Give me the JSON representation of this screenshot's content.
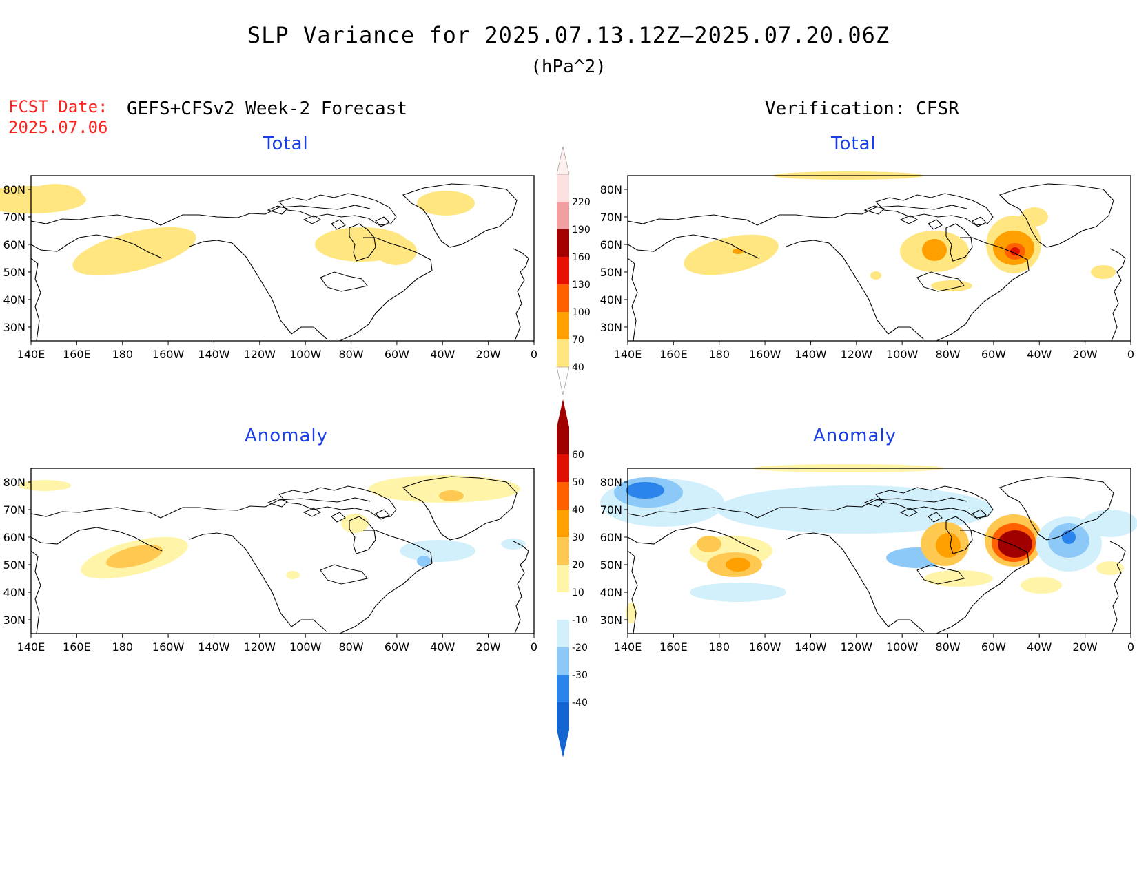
{
  "title": "SLP Variance for 2025.07.13.12Z—2025.07.20.06Z",
  "units": "(hPa^2)",
  "fcst_date_label": "FCST Date:",
  "fcst_date": "2025.07.06",
  "left_header": "GEFS+CFSv2 Week-2 Forecast",
  "right_header": "Verification: CFSR",
  "panels": [
    {
      "id": "fcst-total",
      "title": "Total"
    },
    {
      "id": "verif-total",
      "title": "Total"
    },
    {
      "id": "fcst-anomaly",
      "title": "Anomaly"
    },
    {
      "id": "verif-anomaly",
      "title": "Anomaly"
    }
  ],
  "axes": {
    "lon_labels": [
      "140E",
      "160E",
      "180",
      "160W",
      "140W",
      "120W",
      "100W",
      "80W",
      "60W",
      "40W",
      "20W",
      "0"
    ],
    "lat_labels": [
      "80N",
      "70N",
      "60N",
      "50N",
      "40N",
      "30N"
    ]
  },
  "total_colorbar": {
    "levels": [
      "40",
      "70",
      "100",
      "130",
      "160",
      "190",
      "220"
    ],
    "colors": [
      "#ffe680",
      "#ffa000",
      "#ff6000",
      "#e81000",
      "#a50000",
      "#f0a0a0",
      "#fde0e0"
    ]
  },
  "anomaly_colorbar": {
    "levels": [
      "-40",
      "-30",
      "-20",
      "-10",
      "10",
      "20",
      "30",
      "40",
      "50",
      "60"
    ],
    "colors": [
      "#1464d2",
      "#2a84ec",
      "#8cc8f8",
      "#d2f0fc",
      "#ffffff",
      "#fff4a8",
      "#ffc850",
      "#ffa000",
      "#ff6000",
      "#e01000",
      "#a00000"
    ]
  },
  "map_colors": {
    "yellow": "#ffe680",
    "light_orange": "#ffc850",
    "orange": "#ffa000",
    "dark_orange": "#ff6000",
    "red": "#e01000",
    "dark_red": "#a00000",
    "pale_yellow": "#fff4a8",
    "light_blue": "#d2f0fc",
    "mid_blue": "#8cc8f8",
    "blue": "#2a84ec",
    "dark_blue": "#1464d2"
  }
}
